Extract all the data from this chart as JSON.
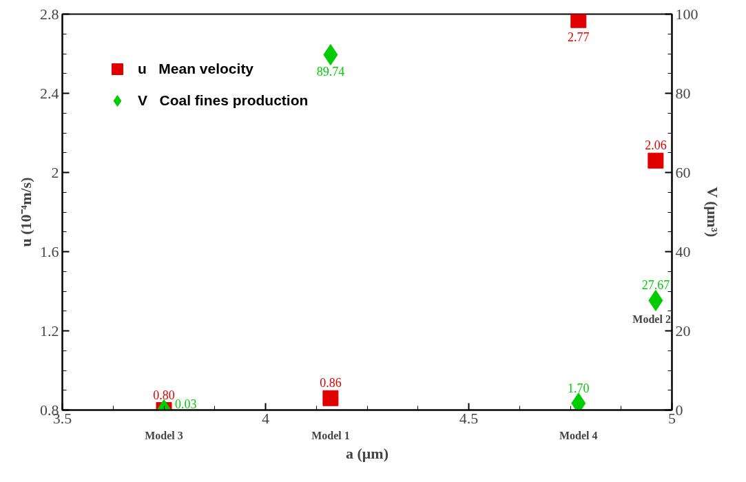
{
  "chart_data": {
    "type": "scatter",
    "xlabel": "a (μm)",
    "ylabel": "u (10⁻⁴m/s)",
    "y2label": "V (μm³)",
    "x": [
      3.75,
      4.16,
      4.77,
      4.96
    ],
    "series": [
      {
        "name": "u   Mean velocity",
        "color": "#e00000",
        "marker": "square",
        "values": [
          0.8,
          0.86,
          2.77,
          2.06
        ],
        "value_labels": [
          "0.80",
          "0.86",
          "2.77",
          "2.06"
        ]
      },
      {
        "name": "V   Coal fines production",
        "color": "#00cc00",
        "marker": "diamond",
        "axis": "y2",
        "values": [
          0.03,
          89.74,
          1.7,
          27.67
        ],
        "value_labels": [
          "0.03",
          "89.74",
          "1.70",
          "27.67"
        ]
      }
    ],
    "xlim": [
      3.5,
      5
    ],
    "xticks": [
      3.5,
      4,
      4.5,
      5
    ],
    "ylim": [
      0.8,
      2.8
    ],
    "yticks": [
      0.8,
      1.2,
      1.6,
      2,
      2.4,
      2.8
    ],
    "y2lim": [
      0,
      100
    ],
    "y2ticks": [
      0,
      20,
      40,
      60,
      80,
      100
    ],
    "legend": "top left",
    "grid": false,
    "data_labels": true,
    "annotations": [
      {
        "text": "Model 3",
        "x": 3.75,
        "y": 0.8
      },
      {
        "text": "Model 1",
        "x": 4.16,
        "y": 0.86
      },
      {
        "text": "Model 4",
        "x": 4.77,
        "y": 0.83
      },
      {
        "text": "Model 2",
        "x": 4.96,
        "y": 1.35
      }
    ]
  }
}
